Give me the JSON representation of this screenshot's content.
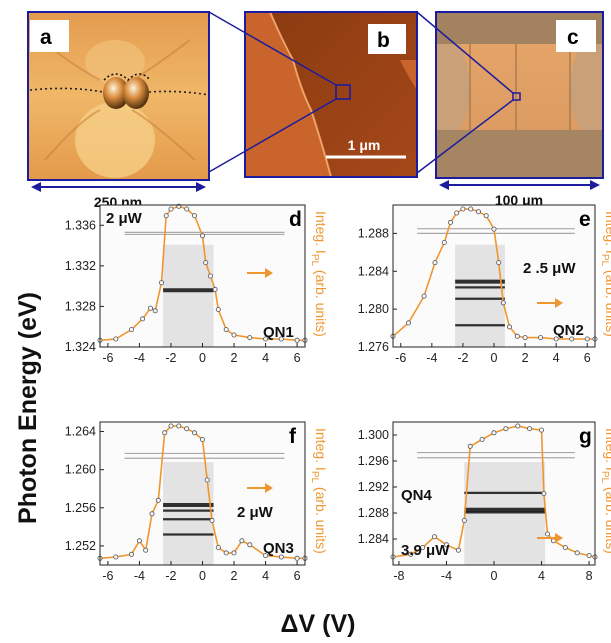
{
  "images": {
    "a": {
      "label": "a",
      "scale": "250 nm"
    },
    "b": {
      "label": "b",
      "scalebar": "1 μm"
    },
    "c": {
      "label": "c",
      "scale": "100 μm"
    }
  },
  "axes": {
    "ylabel": "Photon Energy (eV)",
    "xlabel": "ΔV (V)",
    "right_label": "Integ. I",
    "right_label_sub": "PL",
    "right_label_tail": " (arb. units)"
  },
  "colors": {
    "frame": "#1c1c9e",
    "curve": "#f0962f",
    "spectra": "#222222"
  },
  "panels": [
    {
      "label": "d",
      "power": "2 μW",
      "dot": "QN1",
      "yticks": [
        "1.336",
        "1.332",
        "1.328",
        "1.324"
      ],
      "xticks": [
        "-6",
        "-4",
        "-2",
        "0",
        "2",
        "4",
        "6"
      ]
    },
    {
      "label": "e",
      "power": "2 .5 μW",
      "dot": "QN2",
      "yticks": [
        "1.288",
        "1.284",
        "1.280",
        "1.276"
      ],
      "xticks": [
        "-6",
        "-4",
        "-2",
        "0",
        "2",
        "4",
        "6"
      ]
    },
    {
      "label": "f",
      "power": "2 μW",
      "dot": "QN3",
      "yticks": [
        "1.264",
        "1.260",
        "1.256",
        "1.252"
      ],
      "xticks": [
        "-6",
        "-4",
        "-2",
        "0",
        "2",
        "4",
        "6"
      ]
    },
    {
      "label": "g",
      "power": "3.9 μW",
      "dot": "QN4",
      "yticks": [
        "1.300",
        "1.296",
        "1.292",
        "1.288",
        "1.284"
      ],
      "xticks": [
        "-8",
        "-4",
        "0",
        "4",
        "8"
      ]
    }
  ],
  "chart_data": [
    {
      "type": "heatmap",
      "panel": "d",
      "xlim": [
        -6.5,
        6.5
      ],
      "ylim": [
        1.324,
        1.338
      ],
      "lines_eV": [
        1.3296,
        1.3351,
        1.3353
      ],
      "integrated_curve": {
        "x": [
          -6.5,
          -5.5,
          -4.5,
          -3.8,
          -3.3,
          -3,
          -2.6,
          -2.3,
          -2,
          -1.5,
          -1,
          -0.5,
          0,
          0.2,
          0.5,
          0.8,
          1,
          1.5,
          2,
          3,
          4,
          5,
          6,
          6.5
        ],
        "y": [
          0.02,
          0.03,
          0.1,
          0.18,
          0.26,
          0.24,
          0.45,
          0.95,
          1.0,
          1.02,
          1.0,
          0.95,
          0.8,
          0.6,
          0.5,
          0.4,
          0.25,
          0.1,
          0.06,
          0.04,
          0.03,
          0.03,
          0.02,
          0.02
        ]
      }
    },
    {
      "type": "heatmap",
      "panel": "e",
      "xlim": [
        -6.5,
        6.5
      ],
      "ylim": [
        1.276,
        1.291
      ],
      "lines_eV": [
        1.2829,
        1.2823,
        1.2811,
        1.2783,
        1.2885,
        1.288
      ],
      "integrated_curve": {
        "x": [
          -6.5,
          -5.5,
          -4.5,
          -3.8,
          -3.2,
          -2.8,
          -2.4,
          -2,
          -1.5,
          -1,
          -0.5,
          0,
          0.3,
          0.6,
          1,
          1.5,
          2,
          3,
          4,
          5,
          6,
          6.5
        ],
        "y": [
          0.05,
          0.15,
          0.35,
          0.6,
          0.75,
          0.9,
          0.97,
          1.0,
          1.0,
          0.98,
          0.95,
          0.85,
          0.6,
          0.3,
          0.12,
          0.05,
          0.04,
          0.04,
          0.03,
          0.03,
          0.03,
          0.03
        ]
      }
    },
    {
      "type": "heatmap",
      "panel": "f",
      "xlim": [
        -6.5,
        6.5
      ],
      "ylim": [
        1.25,
        1.265
      ],
      "lines_eV": [
        1.2563,
        1.2557,
        1.2548,
        1.2532,
        1.2617,
        1.2612
      ],
      "integrated_curve": {
        "x": [
          -6.5,
          -5.5,
          -4.5,
          -4,
          -3.6,
          -3.2,
          -2.8,
          -2.4,
          -2,
          -1.5,
          -1,
          -0.5,
          0,
          0.3,
          0.6,
          1,
          1.5,
          2,
          2.5,
          3,
          4,
          5,
          6,
          6.5
        ],
        "y": [
          0.02,
          0.03,
          0.05,
          0.15,
          0.08,
          0.35,
          0.45,
          0.95,
          1.0,
          1.0,
          0.98,
          0.95,
          0.9,
          0.6,
          0.3,
          0.1,
          0.06,
          0.06,
          0.15,
          0.12,
          0.04,
          0.03,
          0.02,
          0.02
        ]
      }
    },
    {
      "type": "heatmap",
      "panel": "g",
      "xlim": [
        -8.5,
        8.5
      ],
      "ylim": [
        1.28,
        1.302
      ],
      "lines_eV": [
        1.2885,
        1.2881,
        1.2911,
        1.2973,
        1.2965
      ],
      "integrated_curve": {
        "x": [
          -8.5,
          -7,
          -6,
          -5,
          -4,
          -3,
          -2.5,
          -2,
          -1,
          0,
          1,
          2,
          3,
          4,
          4.2,
          4.5,
          5,
          6,
          7,
          8,
          8.5
        ],
        "y": [
          0.03,
          0.05,
          0.1,
          0.18,
          0.12,
          0.08,
          0.3,
          0.85,
          0.9,
          0.95,
          0.98,
          1.0,
          0.98,
          0.97,
          0.5,
          0.2,
          0.15,
          0.1,
          0.06,
          0.04,
          0.03
        ]
      }
    }
  ]
}
